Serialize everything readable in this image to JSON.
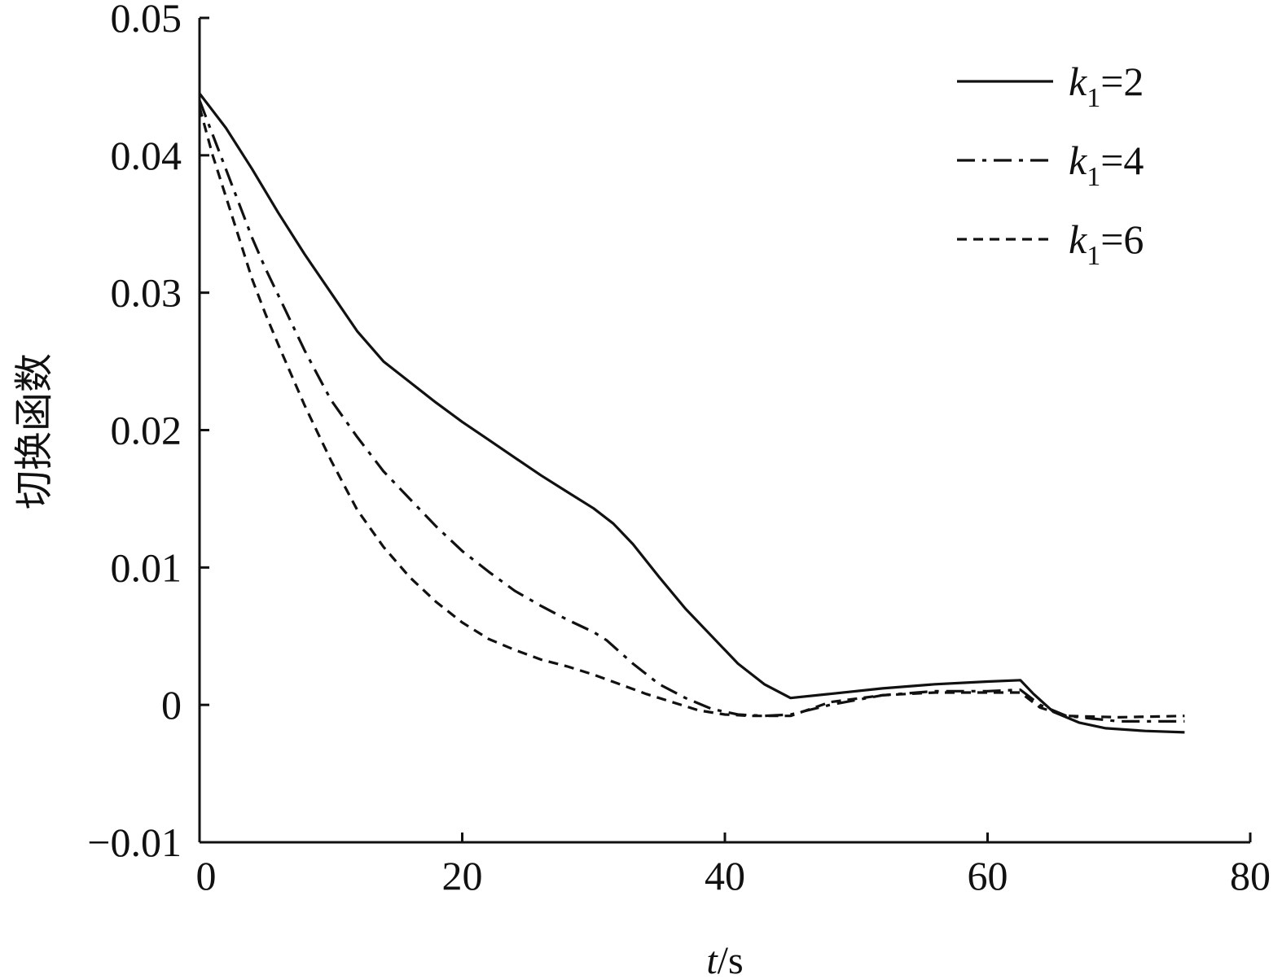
{
  "chart_data": {
    "type": "line",
    "title": "",
    "xlabel": {
      "var": "t",
      "unit": "/s"
    },
    "ylabel": "切换函数",
    "xlim": [
      0,
      80
    ],
    "ylim": [
      -0.01,
      0.05
    ],
    "x_ticks": [
      0,
      20,
      40,
      60,
      80
    ],
    "y_ticks": [
      -0.01,
      0,
      0.01,
      0.02,
      0.03,
      0.04,
      0.05
    ],
    "x_tick_labels": [
      "0",
      "20",
      "40",
      "60",
      "80"
    ],
    "y_tick_labels": [
      "−0.01",
      "0",
      "0.01",
      "0.02",
      "0.03",
      "0.04",
      "0.05"
    ],
    "grid": false,
    "legend": "top-right",
    "colors": {
      "line": "#111111"
    },
    "series": [
      {
        "name": "k1=2",
        "label": {
          "var": "k",
          "sub": "1",
          "rest": "=2"
        },
        "style": "solid",
        "points": [
          [
            0,
            0.0445
          ],
          [
            2,
            0.042
          ],
          [
            4,
            0.039
          ],
          [
            6,
            0.0358
          ],
          [
            8,
            0.0328
          ],
          [
            10,
            0.03
          ],
          [
            12,
            0.0272
          ],
          [
            14,
            0.025
          ],
          [
            16,
            0.0235
          ],
          [
            18,
            0.022
          ],
          [
            20,
            0.0206
          ],
          [
            22,
            0.0193
          ],
          [
            24,
            0.018
          ],
          [
            26,
            0.0167
          ],
          [
            28,
            0.0155
          ],
          [
            30,
            0.0143
          ],
          [
            31.5,
            0.0132
          ],
          [
            33,
            0.0117
          ],
          [
            35,
            0.0093
          ],
          [
            37,
            0.007
          ],
          [
            39,
            0.005
          ],
          [
            41,
            0.003
          ],
          [
            43,
            0.0015
          ],
          [
            45,
            0.0005
          ],
          [
            48,
            0.0008
          ],
          [
            52,
            0.0012
          ],
          [
            56,
            0.0015
          ],
          [
            60,
            0.0017
          ],
          [
            62.5,
            0.0018
          ],
          [
            63.5,
            0.0008
          ],
          [
            65,
            -0.0005
          ],
          [
            67,
            -0.0013
          ],
          [
            69,
            -0.0017
          ],
          [
            72,
            -0.0019
          ],
          [
            75,
            -0.002
          ]
        ]
      },
      {
        "name": "k1=4",
        "label": {
          "var": "k",
          "sub": "1",
          "rest": "=4"
        },
        "style": "dash-dot",
        "points": [
          [
            0,
            0.044
          ],
          [
            1,
            0.0415
          ],
          [
            2,
            0.039
          ],
          [
            3,
            0.0365
          ],
          [
            4,
            0.034
          ],
          [
            5,
            0.0318
          ],
          [
            6,
            0.0298
          ],
          [
            7,
            0.0278
          ],
          [
            8,
            0.0258
          ],
          [
            9,
            0.024
          ],
          [
            10,
            0.0222
          ],
          [
            12,
            0.0195
          ],
          [
            14,
            0.017
          ],
          [
            16,
            0.015
          ],
          [
            18,
            0.013
          ],
          [
            20,
            0.0112
          ],
          [
            22,
            0.0097
          ],
          [
            24,
            0.0083
          ],
          [
            26,
            0.0072
          ],
          [
            28,
            0.0062
          ],
          [
            30,
            0.0053
          ],
          [
            31,
            0.0047
          ],
          [
            33,
            0.003
          ],
          [
            35,
            0.0015
          ],
          [
            37,
            0.0005
          ],
          [
            39,
            -0.0003
          ],
          [
            41,
            -0.0007
          ],
          [
            43,
            -0.0008
          ],
          [
            45,
            -0.0007
          ],
          [
            48,
            0.0
          ],
          [
            52,
            0.0007
          ],
          [
            56,
            0.001
          ],
          [
            60,
            0.001
          ],
          [
            62.5,
            0.0011
          ],
          [
            64,
            0.0
          ],
          [
            66,
            -0.0008
          ],
          [
            70,
            -0.0012
          ],
          [
            75,
            -0.0012
          ]
        ]
      },
      {
        "name": "k1=6",
        "label": {
          "var": "k",
          "sub": "1",
          "rest": "=6"
        },
        "style": "dashed",
        "points": [
          [
            0,
            0.0435
          ],
          [
            1,
            0.04
          ],
          [
            2,
            0.037
          ],
          [
            3,
            0.034
          ],
          [
            4,
            0.031
          ],
          [
            5,
            0.0285
          ],
          [
            6,
            0.0262
          ],
          [
            7,
            0.024
          ],
          [
            8,
            0.0218
          ],
          [
            9,
            0.0198
          ],
          [
            10,
            0.0178
          ],
          [
            11,
            0.016
          ],
          [
            12,
            0.0142
          ],
          [
            14,
            0.0115
          ],
          [
            16,
            0.0093
          ],
          [
            18,
            0.0075
          ],
          [
            20,
            0.006
          ],
          [
            22,
            0.0048
          ],
          [
            24,
            0.004
          ],
          [
            26,
            0.0033
          ],
          [
            28,
            0.0028
          ],
          [
            30,
            0.0022
          ],
          [
            32,
            0.0015
          ],
          [
            34,
            0.0008
          ],
          [
            36,
            0.0002
          ],
          [
            38,
            -0.0004
          ],
          [
            40,
            -0.0007
          ],
          [
            42,
            -0.0008
          ],
          [
            45,
            -0.0008
          ],
          [
            48,
            0.0002
          ],
          [
            52,
            0.0007
          ],
          [
            56,
            0.0009
          ],
          [
            60,
            0.0009
          ],
          [
            62.5,
            0.0009
          ],
          [
            64,
            -0.0002
          ],
          [
            66,
            -0.0008
          ],
          [
            70,
            -0.0009
          ],
          [
            75,
            -0.0008
          ]
        ]
      }
    ]
  }
}
